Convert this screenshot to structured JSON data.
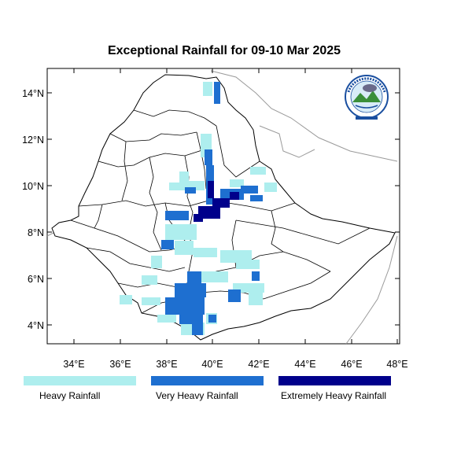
{
  "title": "Exceptional Rainfall for 09-10 Mar 2025",
  "axes": {
    "lat_ticks": [
      "4°N",
      "6°N",
      "8°N",
      "10°N",
      "12°N",
      "14°N"
    ],
    "lon_ticks": [
      "34°E",
      "36°E",
      "38°E",
      "40°E",
      "42°E",
      "44°E",
      "46°E",
      "48°E"
    ]
  },
  "legend": [
    {
      "label": "Heavy Rainfall",
      "color": "#aeeeee"
    },
    {
      "label": "Very Heavy Rainfall",
      "color": "#1e6fd0"
    },
    {
      "label": "Extremely Heavy Rainfall",
      "color": "#00008b"
    }
  ],
  "logo": {
    "text": "Ethiopian Meteorology Institute",
    "year": "EMI"
  },
  "colors": {
    "country_border": "#000000",
    "neighbor_border": "#9a9a9a"
  }
}
